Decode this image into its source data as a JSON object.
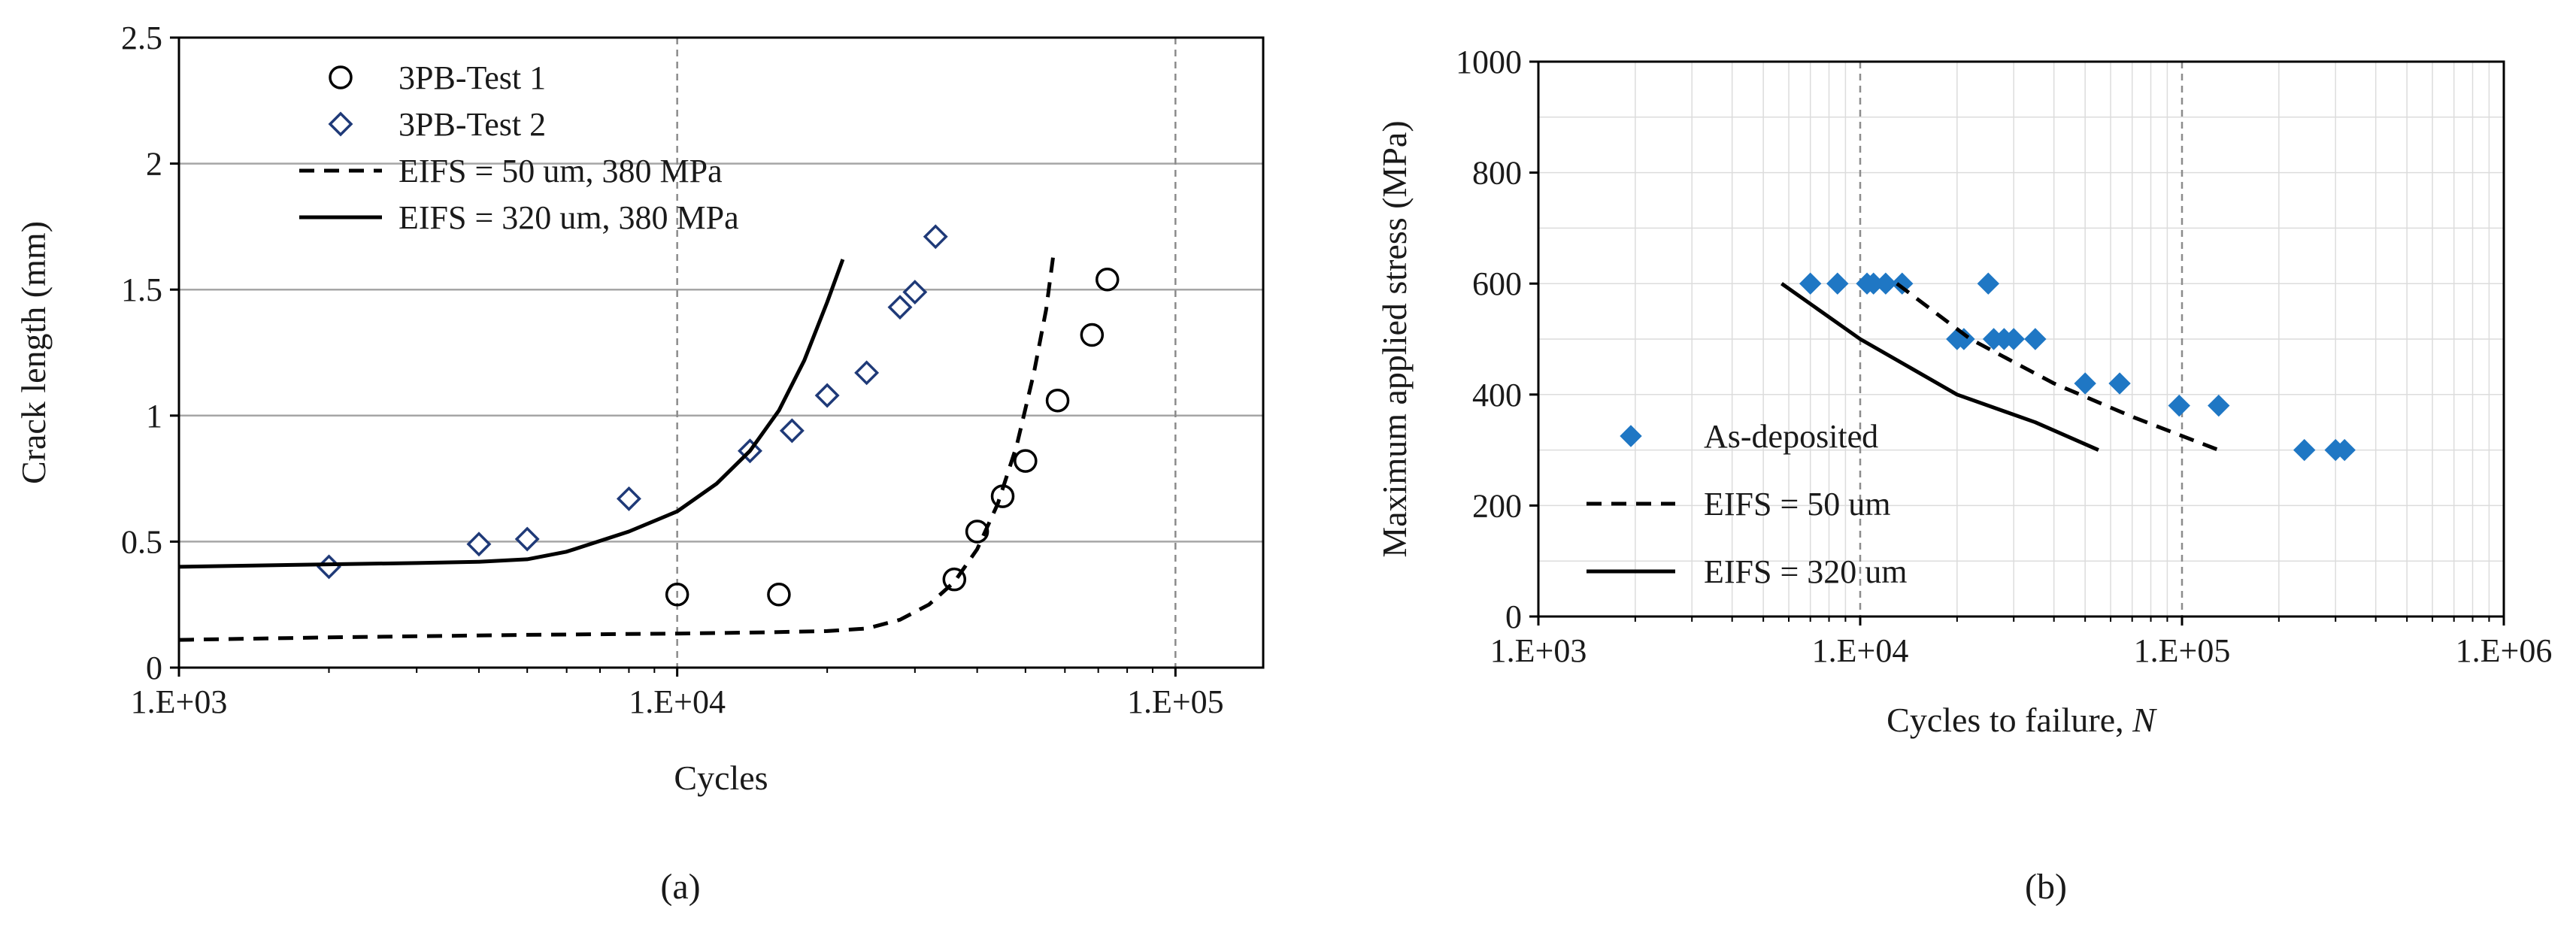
{
  "colors": {
    "marker_blue": "#1f77c4",
    "marker_navy": "#1f3a78",
    "line": "#000000",
    "grid": "#a6a6a6",
    "dashed_grid": "#8c8c8c"
  },
  "chart_data": [
    {
      "type": "scatter",
      "panel_label": "(a)",
      "title": "",
      "xlabel": "Cycles",
      "ylabel": "Crack length (mm)",
      "x_scale": "log",
      "xlim": [
        1000,
        150000
      ],
      "ylim": [
        0,
        2.5
      ],
      "x_ticks": [
        1000,
        10000,
        100000
      ],
      "x_tick_labels": [
        "1.E+03",
        "1.E+04",
        "1.E+05"
      ],
      "y_ticks": [
        0,
        0.5,
        1,
        1.5,
        2,
        2.5
      ],
      "y_tick_labels": [
        "0",
        "0.5",
        "1",
        "1.5",
        "2",
        "2.5"
      ],
      "grid": "horizontal major gridlines, dashed vertical lines at decades",
      "legend_position": "top-left",
      "series": [
        {
          "name": "3PB-Test 1",
          "kind": "marker",
          "marker": "open-circle",
          "color": "#000000",
          "x": [
            10000,
            16000,
            36000,
            40000,
            45000,
            50000,
            58000,
            68000,
            73000
          ],
          "y": [
            0.29,
            0.29,
            0.35,
            0.54,
            0.68,
            0.82,
            1.06,
            1.32,
            1.54
          ]
        },
        {
          "name": "3PB-Test 2",
          "kind": "marker",
          "marker": "open-diamond",
          "color": "#1f3a78",
          "x": [
            2000,
            4000,
            5000,
            8000,
            14000,
            17000,
            20000,
            24000,
            28000,
            30000,
            33000
          ],
          "y": [
            0.4,
            0.49,
            0.51,
            0.67,
            0.86,
            0.94,
            1.08,
            1.17,
            1.43,
            1.49,
            1.71
          ]
        },
        {
          "name": "EIFS = 50 um, 380 MPa",
          "kind": "line",
          "dash": "dashed",
          "color": "#000000",
          "x": [
            1000,
            2000,
            5000,
            10000,
            15000,
            20000,
            24000,
            28000,
            32000,
            36000,
            40000,
            44000,
            48000,
            52000,
            55000,
            57000
          ],
          "y": [
            0.11,
            0.12,
            0.13,
            0.135,
            0.14,
            0.145,
            0.155,
            0.19,
            0.25,
            0.34,
            0.47,
            0.65,
            0.88,
            1.17,
            1.42,
            1.65
          ]
        },
        {
          "name": "EIFS = 320 um, 380 MPa",
          "kind": "line",
          "dash": "solid",
          "color": "#000000",
          "x": [
            1000,
            2000,
            3000,
            4000,
            5000,
            6000,
            8000,
            10000,
            12000,
            14000,
            16000,
            18000,
            20000,
            21500
          ],
          "y": [
            0.4,
            0.41,
            0.415,
            0.42,
            0.43,
            0.46,
            0.54,
            0.62,
            0.73,
            0.86,
            1.02,
            1.22,
            1.45,
            1.62
          ]
        }
      ]
    },
    {
      "type": "scatter",
      "panel_label": "(b)",
      "title": "",
      "xlabel": "Cycles to failure, ",
      "xlabel_italic": "N",
      "ylabel": "Maximum applied stress (MPa)",
      "x_scale": "log",
      "xlim": [
        1000,
        1000000
      ],
      "ylim": [
        0,
        1000
      ],
      "x_ticks": [
        1000,
        10000,
        100000,
        1000000
      ],
      "x_tick_labels": [
        "1.E+03",
        "1.E+04",
        "1.E+05",
        "1.E+06"
      ],
      "y_ticks": [
        0,
        200,
        400,
        600,
        800,
        1000
      ],
      "y_tick_labels": [
        "0",
        "200",
        "400",
        "600",
        "800",
        "1000"
      ],
      "grid": "log minor vertical gridlines, horizontal gridlines every 100 MPa, dashed vertical lines at decades",
      "legend_position": "bottom-left",
      "series": [
        {
          "name": "As-deposited",
          "kind": "marker",
          "marker": "filled-diamond",
          "color": "#1f77c4",
          "x": [
            7000,
            8500,
            10500,
            11000,
            12000,
            13500,
            25000,
            20000,
            21000,
            26000,
            28000,
            30000,
            35000,
            50000,
            64000,
            98000,
            130000,
            240000,
            300000,
            320000
          ],
          "y": [
            600,
            600,
            600,
            600,
            600,
            600,
            600,
            500,
            500,
            500,
            500,
            500,
            500,
            420,
            420,
            380,
            380,
            300,
            300,
            300
          ]
        },
        {
          "name": "EIFS = 50 um",
          "kind": "line",
          "dash": "dashed",
          "color": "#000000",
          "x": [
            13000,
            22000,
            40000,
            70000,
            130000
          ],
          "y": [
            600,
            500,
            420,
            360,
            300
          ]
        },
        {
          "name": "EIFS = 320 um",
          "kind": "line",
          "dash": "solid",
          "color": "#000000",
          "x": [
            5700,
            10000,
            20000,
            35000,
            55000
          ],
          "y": [
            600,
            500,
            400,
            350,
            300
          ]
        }
      ]
    }
  ]
}
